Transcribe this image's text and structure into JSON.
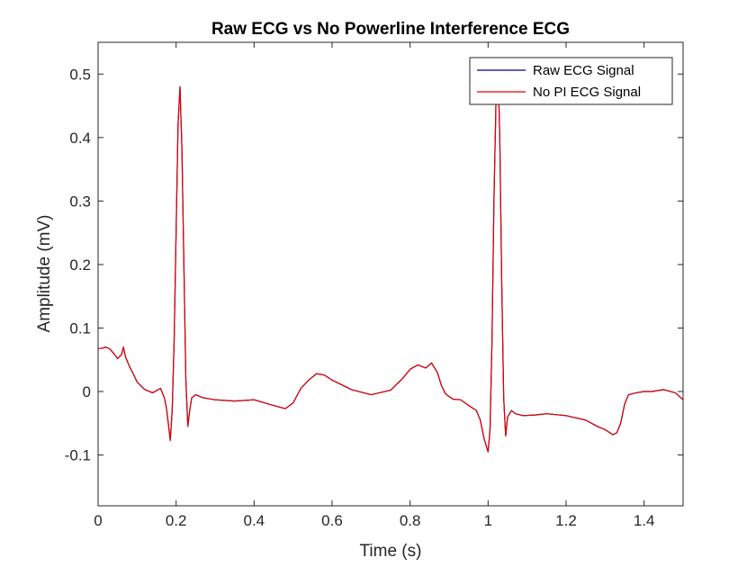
{
  "chart_data": {
    "type": "line",
    "title": "Raw ECG vs No Powerline Interference ECG",
    "xlabel": "Time (s)",
    "ylabel": "Amplitude (mV)",
    "xlim": [
      0,
      1.5
    ],
    "ylim": [
      -0.18,
      0.55
    ],
    "xticks": [
      0,
      0.2,
      0.4,
      0.6,
      0.8,
      1,
      1.2,
      1.4
    ],
    "xtick_labels": [
      "0",
      "0.2",
      "0.4",
      "0.6",
      "0.8",
      "1",
      "1.2",
      "1.4"
    ],
    "yticks": [
      -0.1,
      0,
      0.1,
      0.2,
      0.3,
      0.4,
      0.5
    ],
    "ytick_labels": [
      "-0.1",
      "0",
      "0.1",
      "0.2",
      "0.3",
      "0.4",
      "0.5"
    ],
    "grid": false,
    "legend_position": "top-right",
    "series": [
      {
        "name": "Raw ECG Signal",
        "color": "#000080",
        "x": [
          0,
          0.01,
          0.02,
          0.03,
          0.04,
          0.05,
          0.06,
          0.065,
          0.07,
          0.08,
          0.09,
          0.1,
          0.12,
          0.14,
          0.16,
          0.17,
          0.175,
          0.18,
          0.185,
          0.19,
          0.195,
          0.2,
          0.205,
          0.21,
          0.215,
          0.22,
          0.225,
          0.23,
          0.235,
          0.24,
          0.25,
          0.27,
          0.3,
          0.35,
          0.4,
          0.45,
          0.48,
          0.5,
          0.52,
          0.54,
          0.56,
          0.58,
          0.6,
          0.65,
          0.7,
          0.75,
          0.78,
          0.8,
          0.82,
          0.84,
          0.855,
          0.87,
          0.88,
          0.89,
          0.9,
          0.91,
          0.93,
          0.95,
          0.97,
          0.98,
          0.99,
          1,
          1.005,
          1.01,
          1.015,
          1.02,
          1.025,
          1.03,
          1.035,
          1.04,
          1.045,
          1.05,
          1.055,
          1.06,
          1.07,
          1.09,
          1.12,
          1.15,
          1.2,
          1.25,
          1.28,
          1.3,
          1.32,
          1.33,
          1.34,
          1.35,
          1.36,
          1.38,
          1.4,
          1.42,
          1.45,
          1.48,
          1.5
        ],
        "y": [
          0.068,
          0.068,
          0.07,
          0.067,
          0.06,
          0.052,
          0.058,
          0.07,
          0.055,
          0.04,
          0.028,
          0.015,
          0.003,
          -0.002,
          0.005,
          -0.01,
          -0.025,
          -0.05,
          -0.077,
          -0.03,
          0.08,
          0.25,
          0.42,
          0.48,
          0.38,
          0.2,
          0.02,
          -0.055,
          -0.03,
          -0.01,
          -0.005,
          -0.01,
          -0.013,
          -0.015,
          -0.013,
          -0.022,
          -0.027,
          -0.018,
          0.005,
          0.018,
          0.028,
          0.026,
          0.018,
          0.003,
          -0.005,
          0.002,
          0.02,
          0.035,
          0.042,
          0.037,
          0.045,
          0.03,
          0.01,
          -0.003,
          -0.008,
          -0.012,
          -0.013,
          -0.022,
          -0.03,
          -0.045,
          -0.075,
          -0.095,
          -0.06,
          0.08,
          0.3,
          0.45,
          0.52,
          0.4,
          0.17,
          -0.01,
          -0.07,
          -0.04,
          -0.035,
          -0.03,
          -0.035,
          -0.038,
          -0.037,
          -0.035,
          -0.038,
          -0.045,
          -0.055,
          -0.06,
          -0.068,
          -0.065,
          -0.05,
          -0.02,
          -0.005,
          -0.002,
          0,
          0,
          0.003,
          -0.002,
          -0.013
        ]
      },
      {
        "name": "No PI ECG Signal",
        "color": "#e00000",
        "x": [
          0,
          0.01,
          0.02,
          0.03,
          0.04,
          0.05,
          0.06,
          0.065,
          0.07,
          0.08,
          0.09,
          0.1,
          0.12,
          0.14,
          0.16,
          0.17,
          0.175,
          0.18,
          0.185,
          0.19,
          0.195,
          0.2,
          0.205,
          0.21,
          0.215,
          0.22,
          0.225,
          0.23,
          0.235,
          0.24,
          0.25,
          0.27,
          0.3,
          0.35,
          0.4,
          0.45,
          0.48,
          0.5,
          0.52,
          0.54,
          0.56,
          0.58,
          0.6,
          0.65,
          0.7,
          0.75,
          0.78,
          0.8,
          0.82,
          0.84,
          0.855,
          0.87,
          0.88,
          0.89,
          0.9,
          0.91,
          0.93,
          0.95,
          0.97,
          0.98,
          0.99,
          1,
          1.005,
          1.01,
          1.015,
          1.02,
          1.025,
          1.03,
          1.035,
          1.04,
          1.045,
          1.05,
          1.055,
          1.06,
          1.07,
          1.09,
          1.12,
          1.15,
          1.2,
          1.25,
          1.28,
          1.3,
          1.32,
          1.33,
          1.34,
          1.35,
          1.36,
          1.38,
          1.4,
          1.42,
          1.45,
          1.48,
          1.5
        ],
        "y": [
          0.068,
          0.068,
          0.07,
          0.067,
          0.06,
          0.052,
          0.058,
          0.07,
          0.055,
          0.04,
          0.028,
          0.015,
          0.003,
          -0.002,
          0.005,
          -0.01,
          -0.025,
          -0.05,
          -0.077,
          -0.03,
          0.08,
          0.25,
          0.42,
          0.48,
          0.38,
          0.2,
          0.02,
          -0.055,
          -0.03,
          -0.01,
          -0.005,
          -0.01,
          -0.013,
          -0.015,
          -0.013,
          -0.022,
          -0.027,
          -0.018,
          0.005,
          0.018,
          0.028,
          0.026,
          0.018,
          0.003,
          -0.005,
          0.002,
          0.02,
          0.035,
          0.042,
          0.037,
          0.045,
          0.03,
          0.01,
          -0.003,
          -0.008,
          -0.012,
          -0.013,
          -0.022,
          -0.03,
          -0.045,
          -0.075,
          -0.095,
          -0.06,
          0.08,
          0.3,
          0.45,
          0.52,
          0.4,
          0.17,
          -0.01,
          -0.07,
          -0.04,
          -0.035,
          -0.03,
          -0.035,
          -0.038,
          -0.037,
          -0.035,
          -0.038,
          -0.045,
          -0.055,
          -0.06,
          -0.068,
          -0.065,
          -0.05,
          -0.02,
          -0.005,
          -0.002,
          0,
          0,
          0.003,
          -0.002,
          -0.013
        ]
      }
    ]
  }
}
